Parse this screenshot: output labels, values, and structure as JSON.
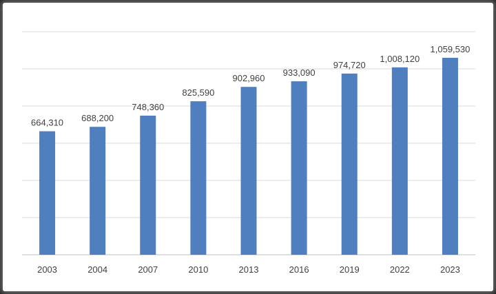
{
  "chart_data": {
    "type": "bar",
    "title": "",
    "xlabel": "",
    "ylabel": "",
    "categories": [
      "2003",
      "2004",
      "2007",
      "2010",
      "2013",
      "2016",
      "2019",
      "2022",
      "2023"
    ],
    "values": [
      664310,
      688200,
      748360,
      825590,
      902960,
      933090,
      974720,
      1008120,
      1059530
    ],
    "data_labels": [
      "664,310",
      "688,200",
      "748,360",
      "825,590",
      "902,960",
      "933,090",
      "974,720",
      "1,008,120",
      "1,059,530"
    ],
    "ylim": [
      0,
      1200000
    ],
    "y_gridline_step": 171428.57,
    "grid": true,
    "legend": "none",
    "bar_color": "#4f7fbf",
    "show_y_axis_labels": false
  }
}
